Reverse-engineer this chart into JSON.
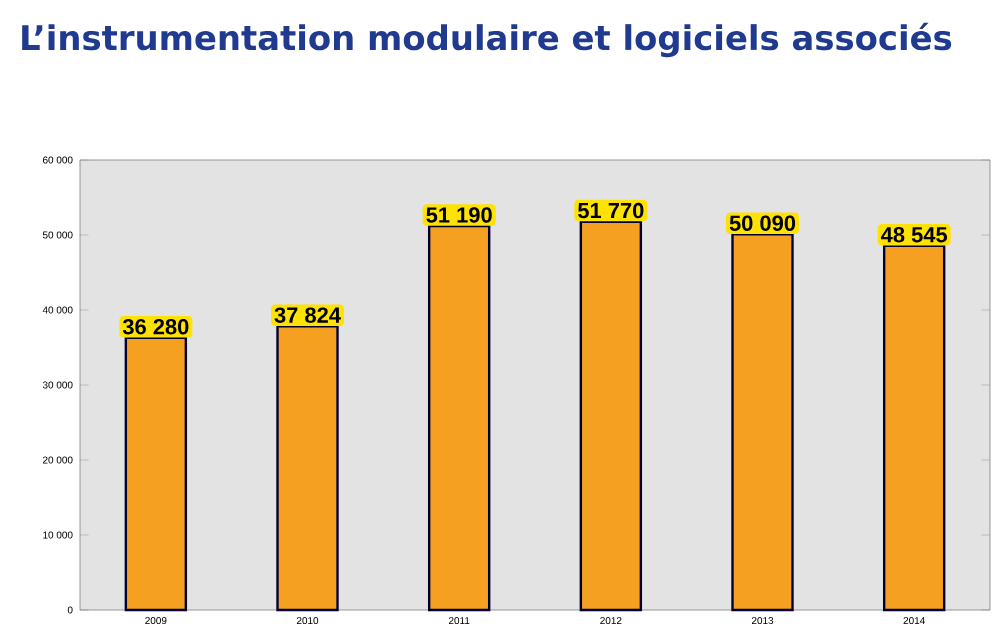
{
  "chart_data": {
    "type": "bar",
    "title": "L’instrumentation modulaire et logiciels associés",
    "categories": [
      "2009",
      "2010",
      "2011",
      "2012",
      "2013",
      "2014"
    ],
    "values": [
      36280,
      37824,
      51190,
      51770,
      50090,
      48545
    ],
    "value_labels": [
      "36 280",
      "37 824",
      "51 190",
      "51 770",
      "50 090",
      "48 545"
    ],
    "color": "#f5a020",
    "ylim": [
      0,
      60000
    ],
    "yticks": [
      0,
      {
        "value": 10000,
        "label": "10 000"
      },
      {
        "value": 20000,
        "label": "20 000"
      },
      {
        "value": 30000,
        "label": "30 000"
      },
      {
        "value": 40000,
        "label": "40 000"
      },
      {
        "value": 50000,
        "label": "50 000"
      },
      {
        "value": 60000,
        "label": "60 000"
      }
    ],
    "grid": false
  }
}
